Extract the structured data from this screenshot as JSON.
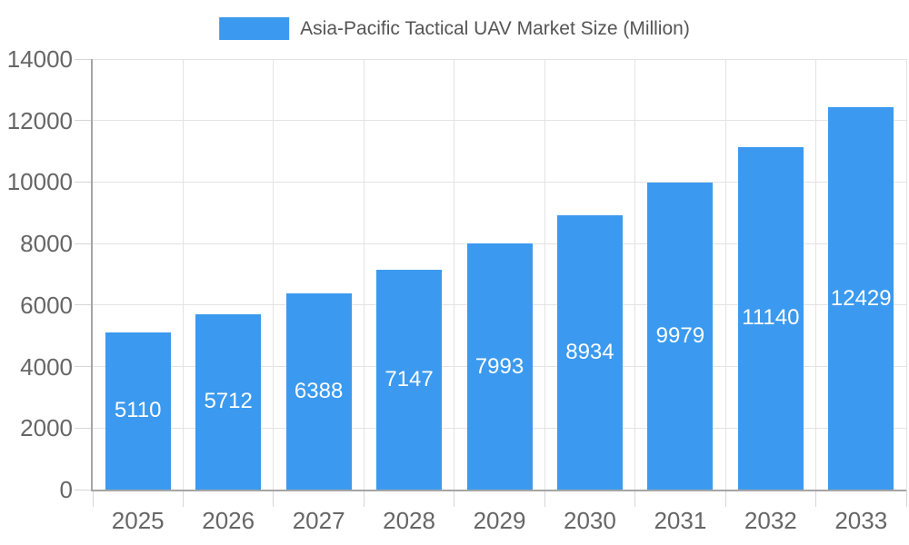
{
  "chart_data": {
    "type": "bar",
    "title": "",
    "legend_label": "Asia-Pacific Tactical UAV Market Size (Million)",
    "legend_position": "top-center",
    "categories": [
      "2025",
      "2026",
      "2027",
      "2028",
      "2029",
      "2030",
      "2031",
      "2032",
      "2033"
    ],
    "values": [
      5110,
      5712,
      6388,
      7147,
      7993,
      8934,
      9979,
      11140,
      12429
    ],
    "xlabel": "",
    "ylabel": "",
    "ylim": [
      0,
      14000
    ],
    "yticks": [
      0,
      2000,
      4000,
      6000,
      8000,
      10000,
      12000,
      14000
    ],
    "grid": true,
    "value_labels_position": "inside-center",
    "colors": {
      "bar": "#3b9aef",
      "value_label_text": "#ffffff",
      "axis_line": "#a5a5a5",
      "gridline": "#e3e3e3",
      "tick_mark": "#d6d6d6",
      "tick_label_text": "#666666",
      "legend_text": "#555555",
      "background": "#ffffff"
    }
  }
}
